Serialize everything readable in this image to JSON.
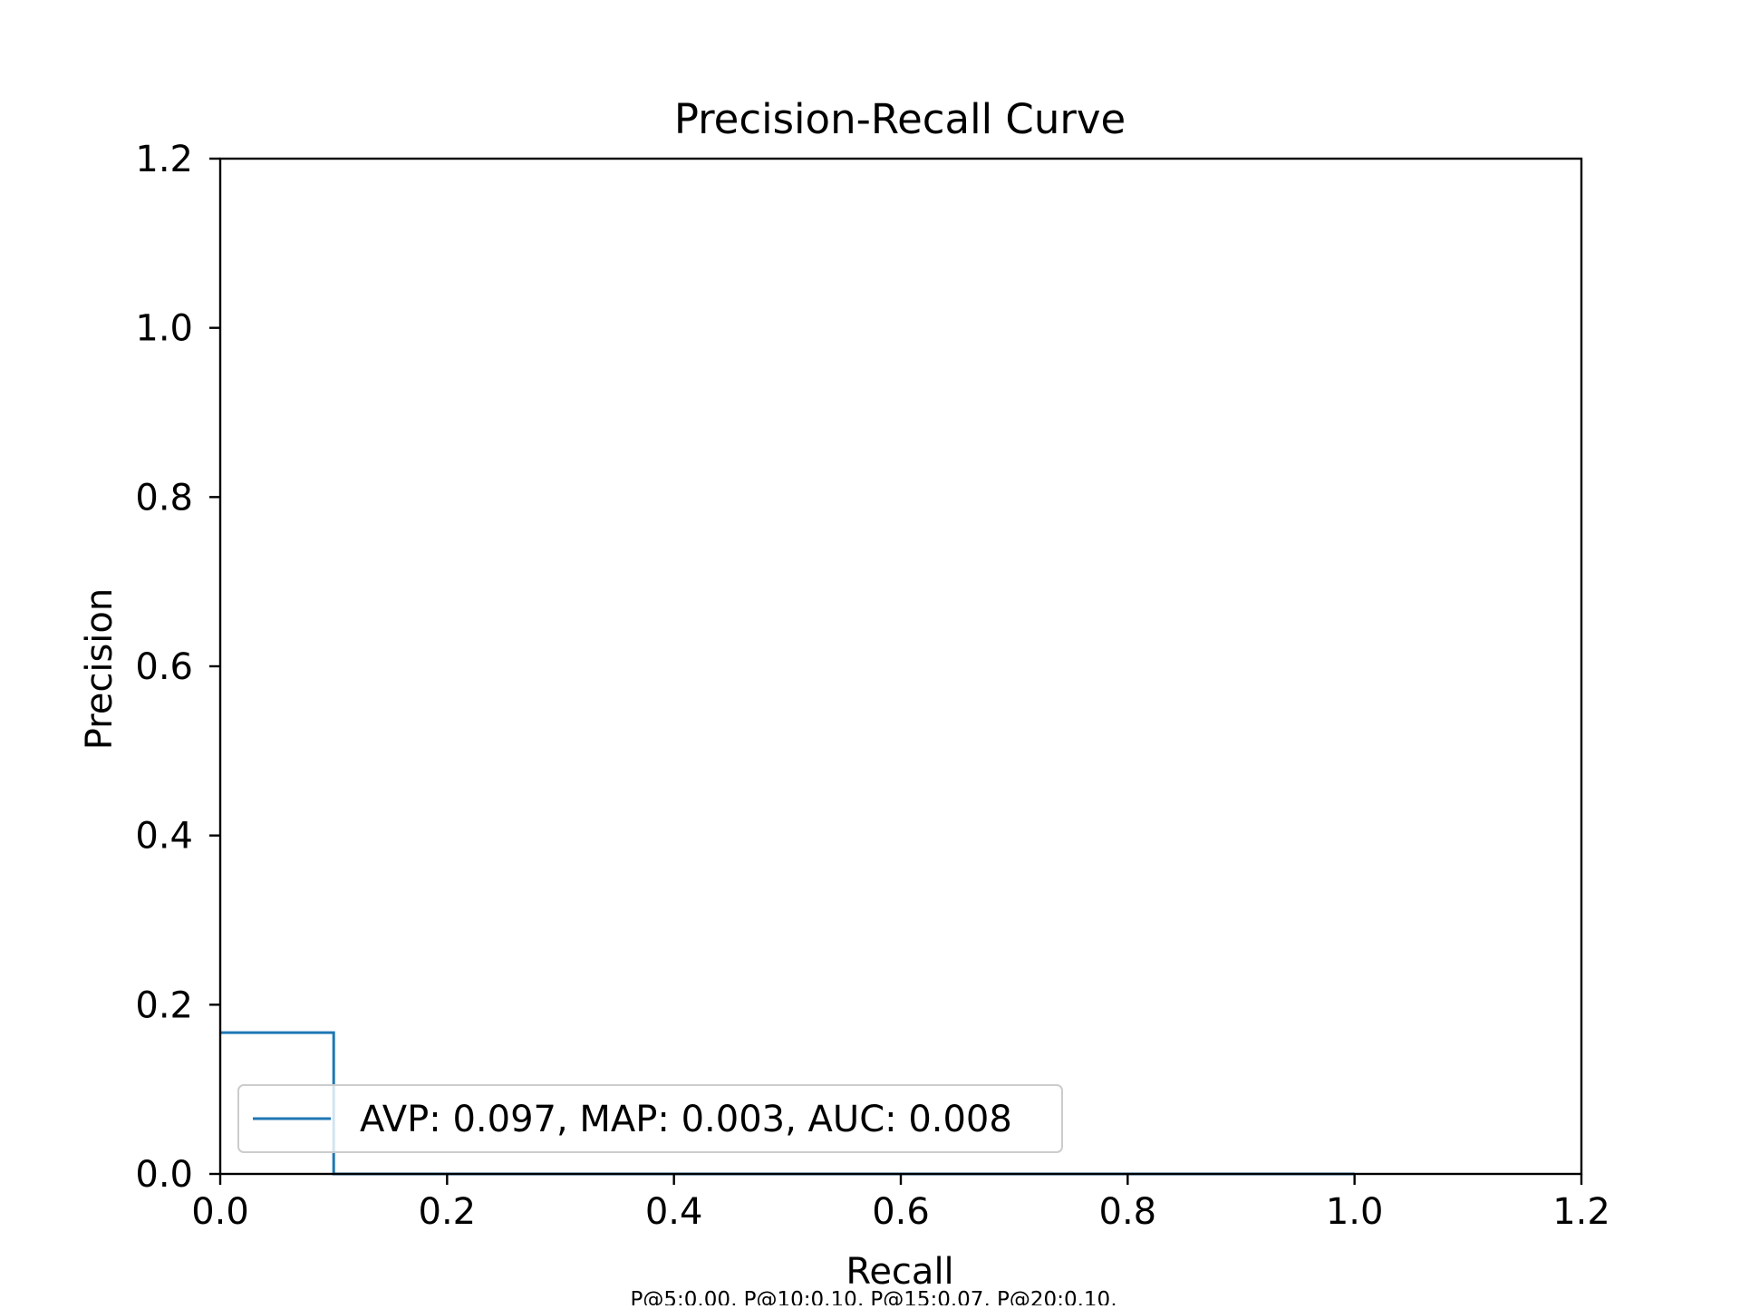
{
  "chart_data": {
    "type": "line",
    "title": "Precision-Recall Curve",
    "xlabel": "Recall",
    "ylabel": "Precision",
    "xlim": [
      0.0,
      1.2
    ],
    "ylim": [
      0.0,
      1.2
    ],
    "xticks": [
      "0.0",
      "0.2",
      "0.4",
      "0.6",
      "0.8",
      "1.0",
      "1.2"
    ],
    "yticks": [
      "0.0",
      "0.2",
      "0.4",
      "0.6",
      "0.8",
      "1.0",
      "1.2"
    ],
    "grid": false,
    "legend_position": "lower-left",
    "series": [
      {
        "name": "AVP: 0.097, MAP: 0.003, AUC: 0.008",
        "color": "#1f77b4",
        "x": [
          0.0,
          0.1,
          0.1,
          1.0
        ],
        "y": [
          0.167,
          0.167,
          0.0,
          0.0
        ]
      }
    ],
    "footnote": "P@5:0.00, P@10:0.10, P@15:0.07, P@20:0.10,"
  }
}
